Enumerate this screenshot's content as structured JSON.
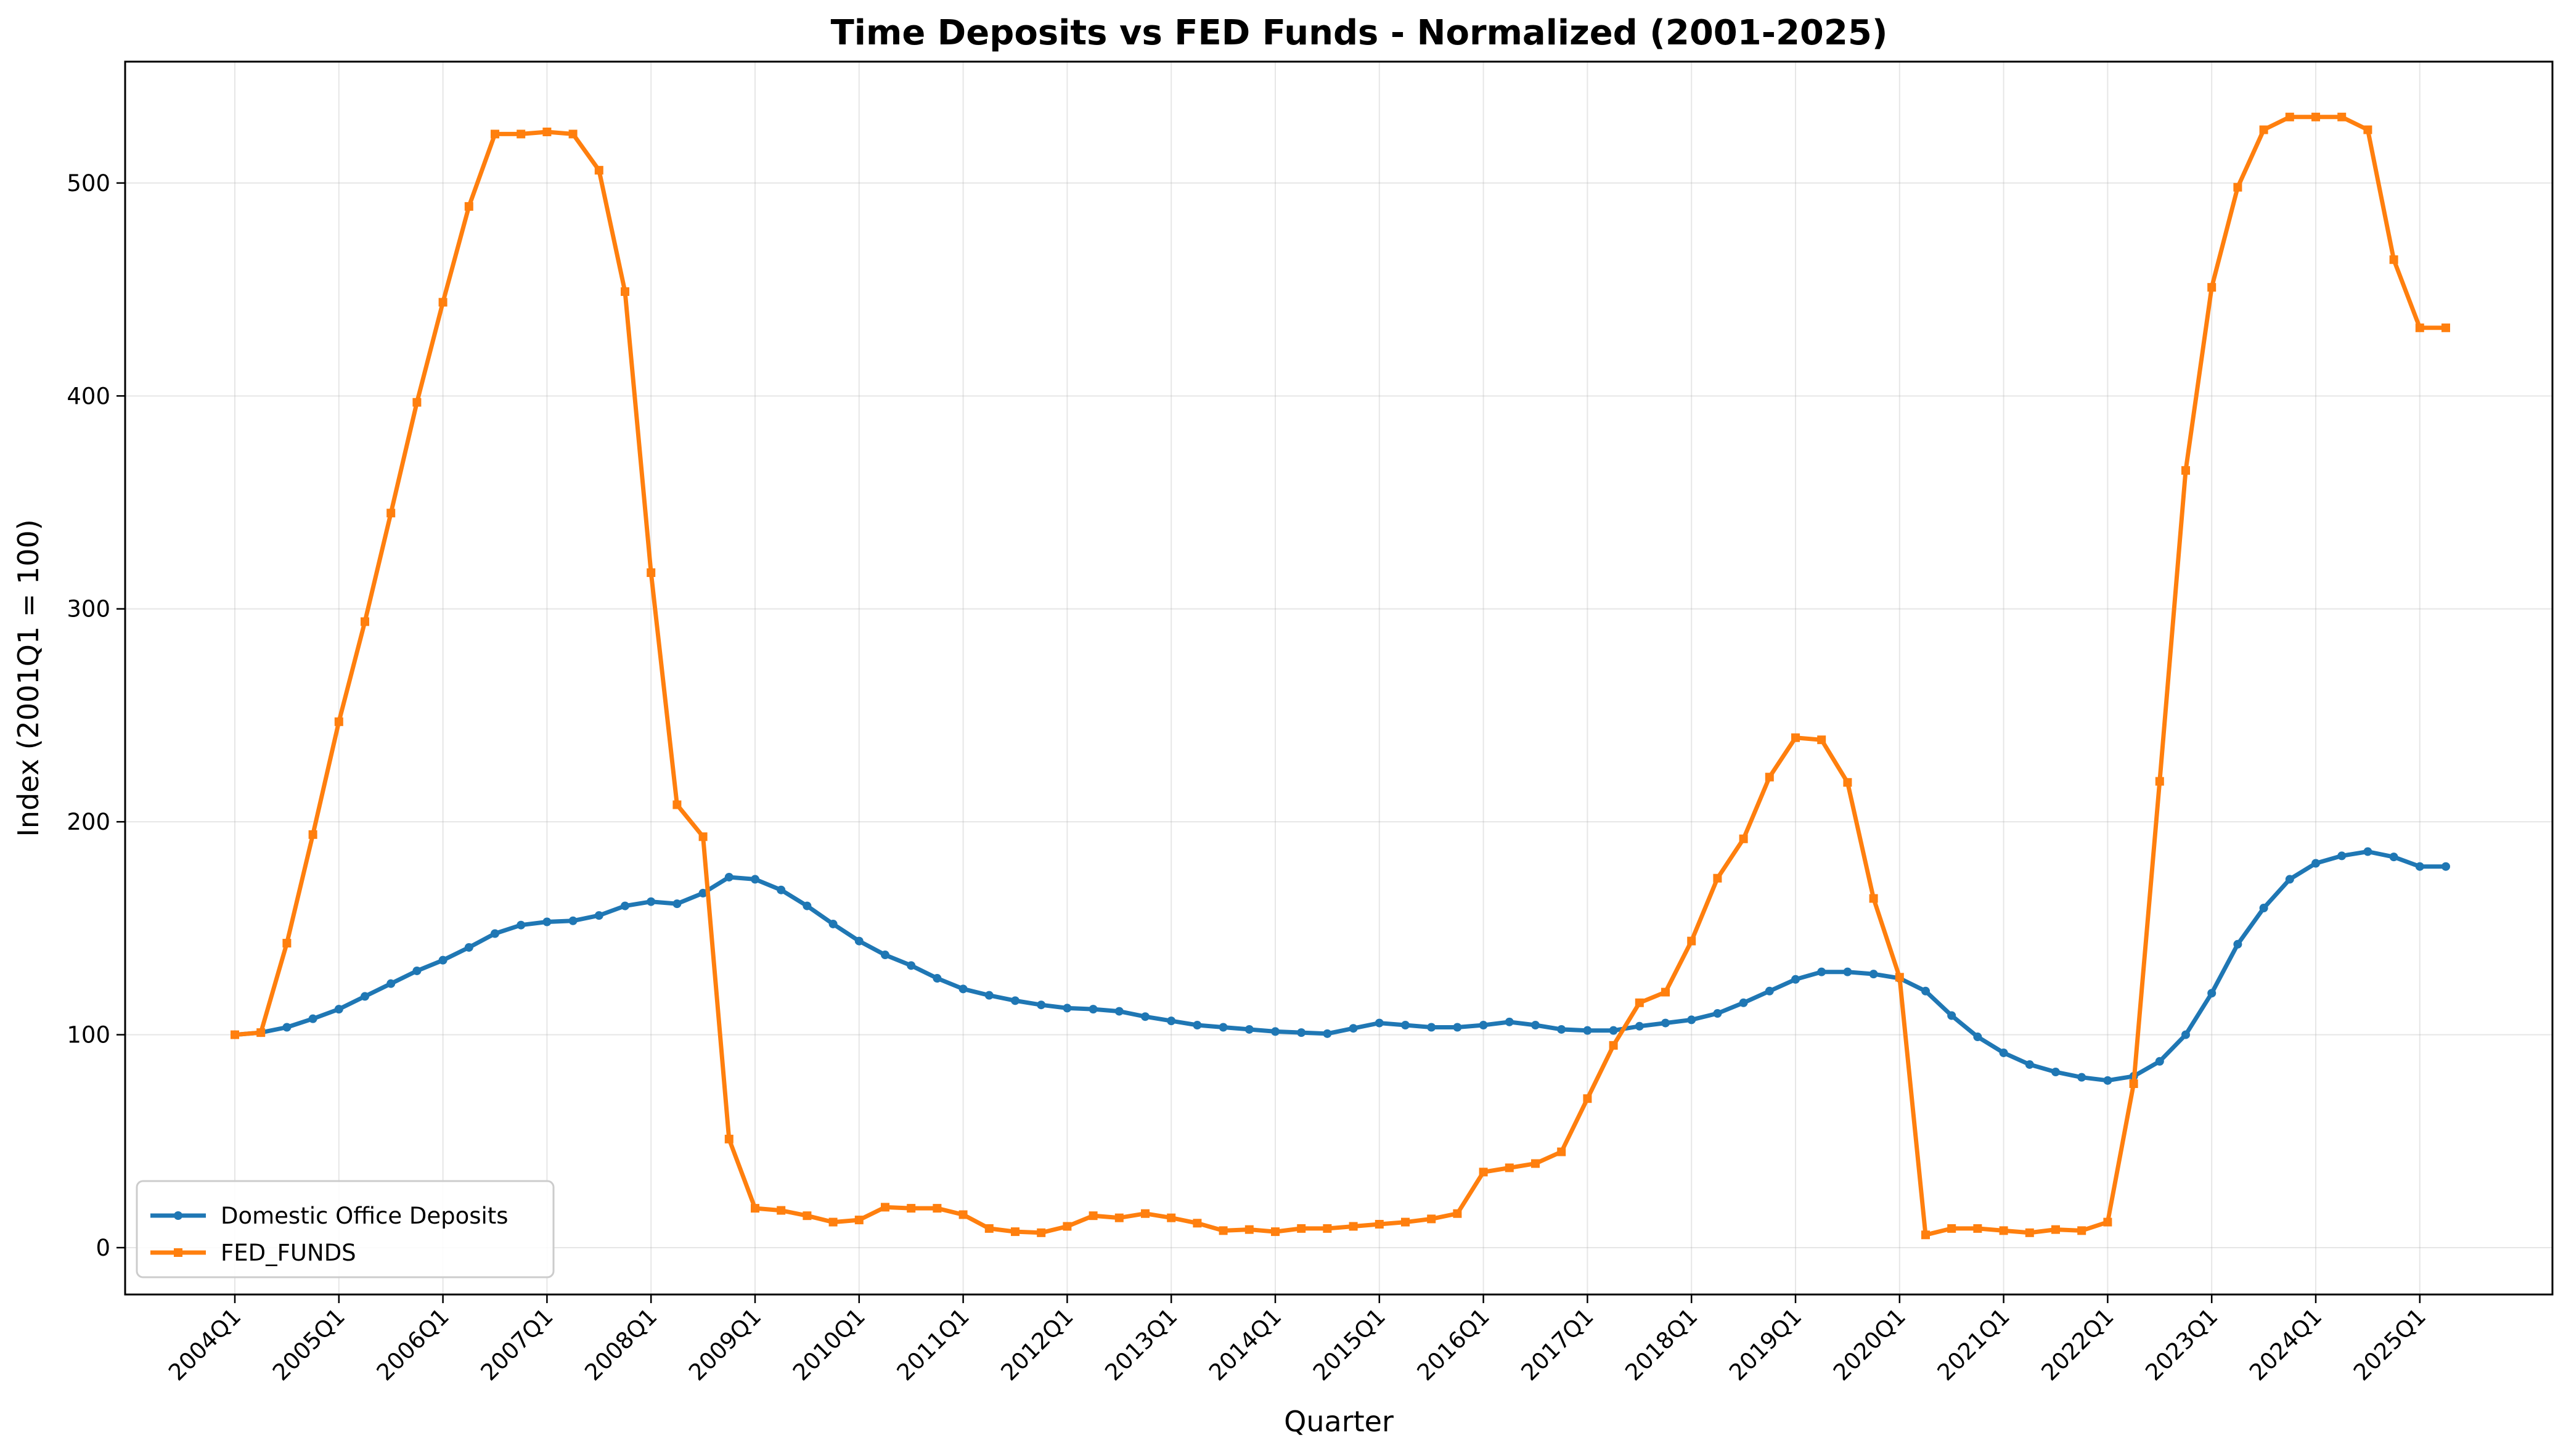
{
  "chart_data": {
    "type": "line",
    "title": "Time Deposits vs FED Funds - Normalized (2001-2025)",
    "xlabel": "Quarter",
    "ylabel": "Index (2001Q1 = 100)",
    "ylim": [
      -22,
      557
    ],
    "yticks": [
      0,
      100,
      200,
      300,
      400,
      500
    ],
    "xticks": [
      "2004Q1",
      "2005Q1",
      "2006Q1",
      "2007Q1",
      "2008Q1",
      "2009Q1",
      "2010Q1",
      "2011Q1",
      "2012Q1",
      "2013Q1",
      "2014Q1",
      "2015Q1",
      "2016Q1",
      "2017Q1",
      "2018Q1",
      "2019Q1",
      "2020Q1",
      "2021Q1",
      "2022Q1",
      "2023Q1",
      "2024Q1",
      "2025Q1"
    ],
    "grid": true,
    "legend": "lower-left",
    "x_start": "2004Q1",
    "series": [
      {
        "name": "Domestic Office Deposits",
        "color": "#1f77b4",
        "marker": "circle",
        "values": [
          100,
          101,
          103.5,
          107.5,
          112,
          118,
          124,
          130,
          135,
          141,
          147.5,
          151.5,
          153,
          153.5,
          156,
          160.5,
          162.5,
          161.5,
          166.5,
          174,
          173,
          168,
          160.5,
          152,
          144,
          137.5,
          132.5,
          126.5,
          121.5,
          118.5,
          116,
          114,
          112.5,
          112,
          111,
          108.5,
          106.5,
          104.5,
          103.5,
          102.5,
          101.5,
          101,
          100.5,
          103,
          105.5,
          104.5,
          103.5,
          103.5,
          104.5,
          106,
          104.5,
          102.5,
          102,
          102,
          104,
          105.5,
          107,
          110,
          115,
          120.5,
          126,
          129.5,
          129.5,
          128.5,
          126.5,
          120.5,
          109,
          99,
          91.5,
          86,
          82.5,
          80,
          78.5,
          80.5,
          87.5,
          100,
          119.5,
          142.5,
          159.5,
          173,
          180.5,
          184,
          186,
          183.5,
          179,
          179
        ]
      },
      {
        "name": "FED_FUNDS",
        "color": "#ff7f0e",
        "marker": "square",
        "values": [
          100,
          101,
          143,
          194,
          247,
          294,
          345,
          397,
          444,
          489,
          523,
          523,
          524,
          523,
          506,
          449,
          317,
          208,
          193,
          51,
          18.5,
          17.5,
          15,
          12,
          13,
          19,
          18.5,
          18.5,
          15.5,
          9,
          7.5,
          7,
          10,
          15,
          14,
          16,
          14,
          11.5,
          8,
          8.5,
          7.5,
          9,
          9,
          10,
          11,
          12,
          13.5,
          16,
          35.5,
          37.5,
          39.5,
          45,
          70,
          95,
          115,
          120,
          144,
          173.5,
          192,
          221,
          239.5,
          238.5,
          218.5,
          164,
          127,
          6,
          9,
          9,
          8,
          7,
          8.5,
          8,
          12,
          77,
          219,
          365,
          451,
          498,
          525,
          531,
          531,
          531,
          525,
          464,
          432,
          432
        ]
      }
    ]
  }
}
